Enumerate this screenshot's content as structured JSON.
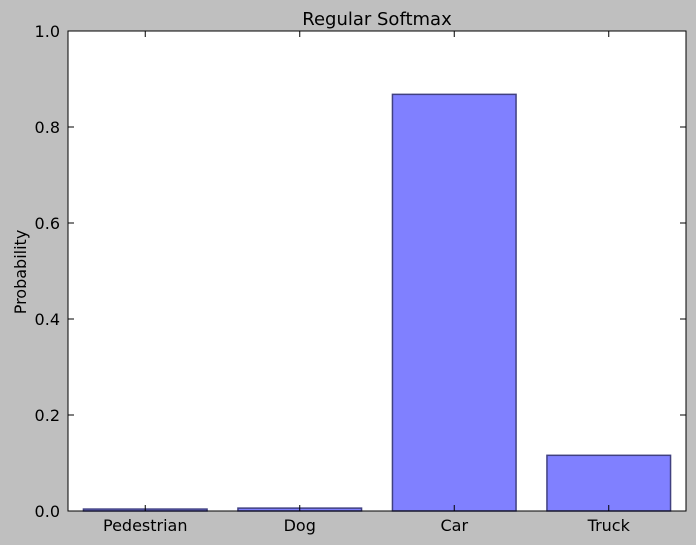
{
  "chart_data": {
    "type": "bar",
    "title": "Regular Softmax",
    "xlabel": "",
    "ylabel": "Probability",
    "categories": [
      "Pedestrian",
      "Dog",
      "Car",
      "Truck"
    ],
    "values": [
      0.004,
      0.006,
      0.868,
      0.116
    ],
    "ylim": [
      0,
      1.0
    ],
    "yticks": [
      "0.0",
      "0.2",
      "0.4",
      "0.6",
      "0.8",
      "1.0"
    ],
    "grid": false,
    "legend": "none",
    "colors": {
      "bar_fill": "#8080ff",
      "bar_stroke": "#404080",
      "figure_bg": "#bfbfbf",
      "axes_bg": "#ffffff"
    }
  }
}
